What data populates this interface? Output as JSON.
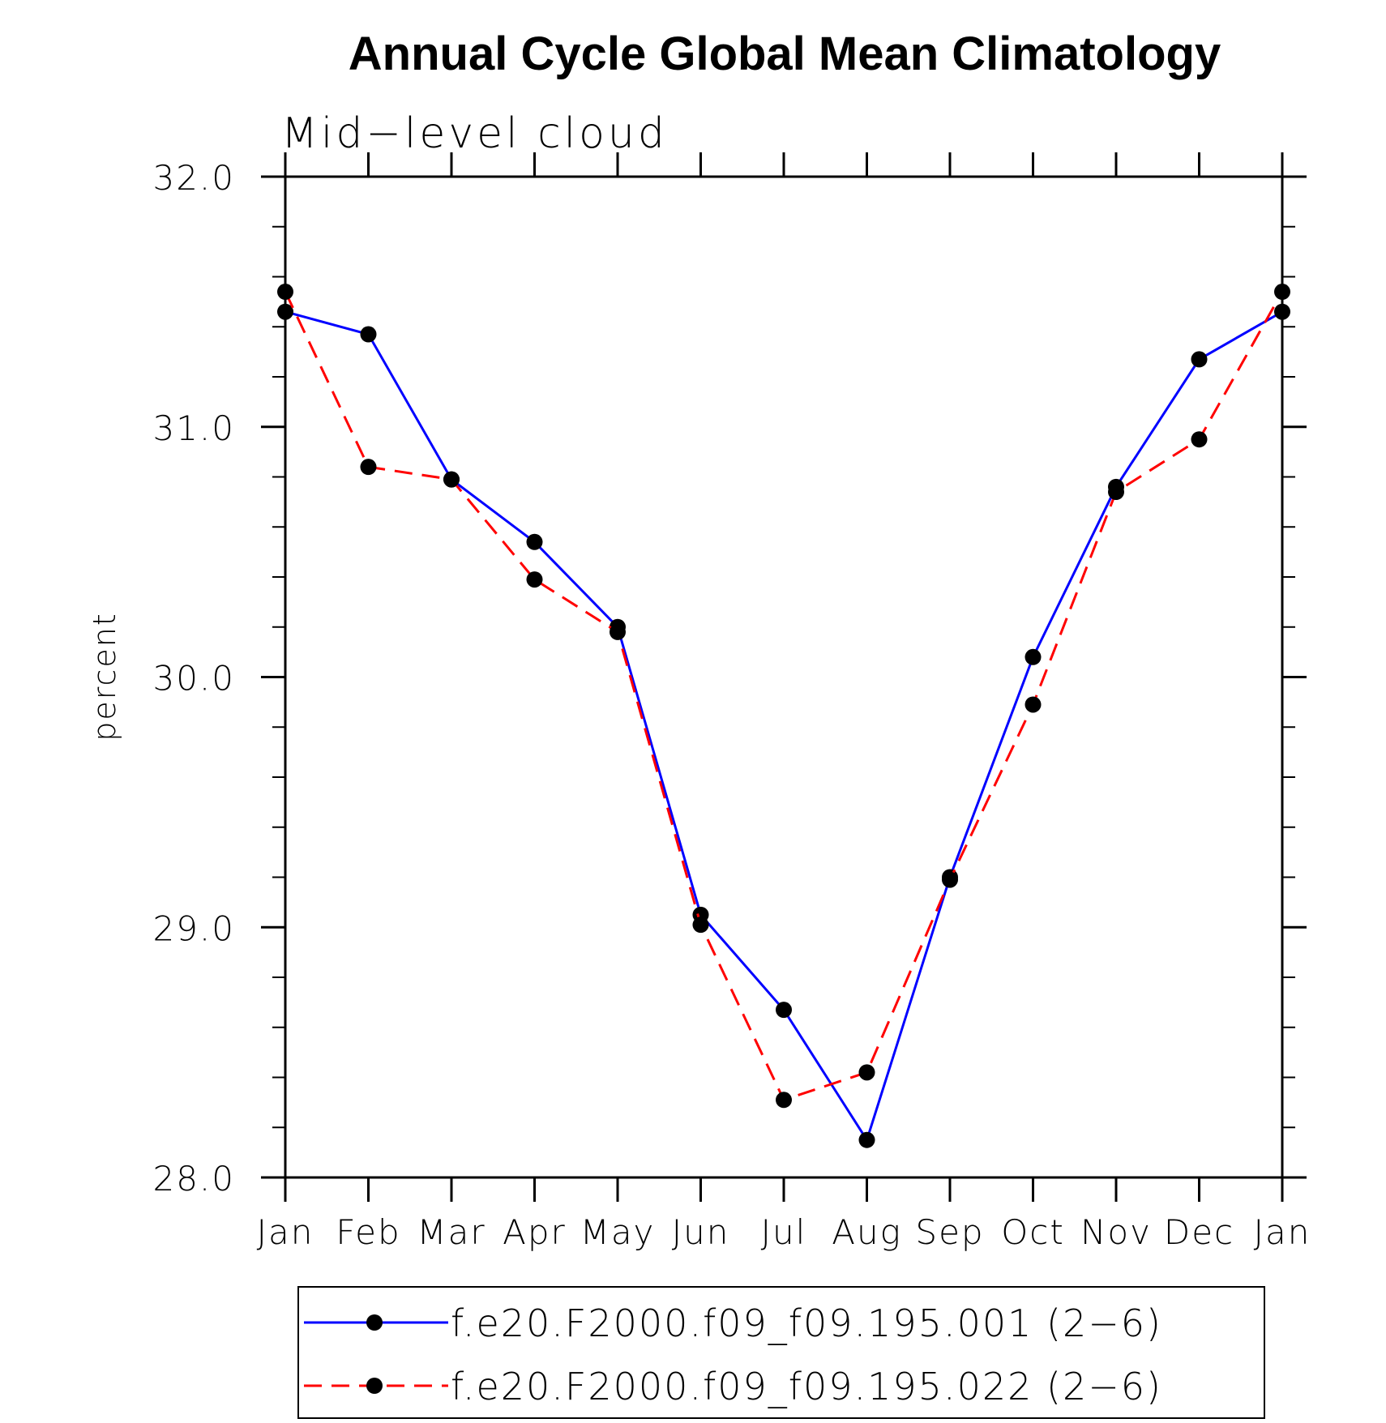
{
  "chart_data": {
    "type": "line",
    "title": "Annual Cycle Global Mean Climatology",
    "subtitle": "Mid−level cloud",
    "xlabel": "",
    "ylabel": "percent",
    "ylim": [
      28.0,
      32.0
    ],
    "y_ticks": [
      "28.0",
      "29.0",
      "30.0",
      "31.0",
      "32.0"
    ],
    "y_tick_values": [
      28.0,
      29.0,
      30.0,
      31.0,
      32.0
    ],
    "y_minor_step": 0.2,
    "categories": [
      "Jan",
      "Feb",
      "Mar",
      "Apr",
      "May",
      "Jun",
      "Jul",
      "Aug",
      "Sep",
      "Oct",
      "Nov",
      "Dec",
      "Jan"
    ],
    "grid": false,
    "legend_position": "bottom",
    "series": [
      {
        "name": "f.e20.F2000.f09_f09.195.001 (2−6)",
        "color": "#0000ff",
        "line_style": "solid",
        "marker_color": "#000000",
        "values": [
          31.46,
          31.37,
          30.79,
          30.54,
          30.2,
          29.05,
          28.67,
          28.15,
          29.2,
          30.08,
          30.76,
          31.27,
          31.46
        ]
      },
      {
        "name": "f.e20.F2000.f09_f09.195.022 (2−6)",
        "color": "#ff0000",
        "line_style": "dashed",
        "marker_color": "#000000",
        "values": [
          31.54,
          30.84,
          30.79,
          30.39,
          30.18,
          29.01,
          28.31,
          28.42,
          29.19,
          29.89,
          30.74,
          30.95,
          31.54
        ]
      }
    ]
  }
}
